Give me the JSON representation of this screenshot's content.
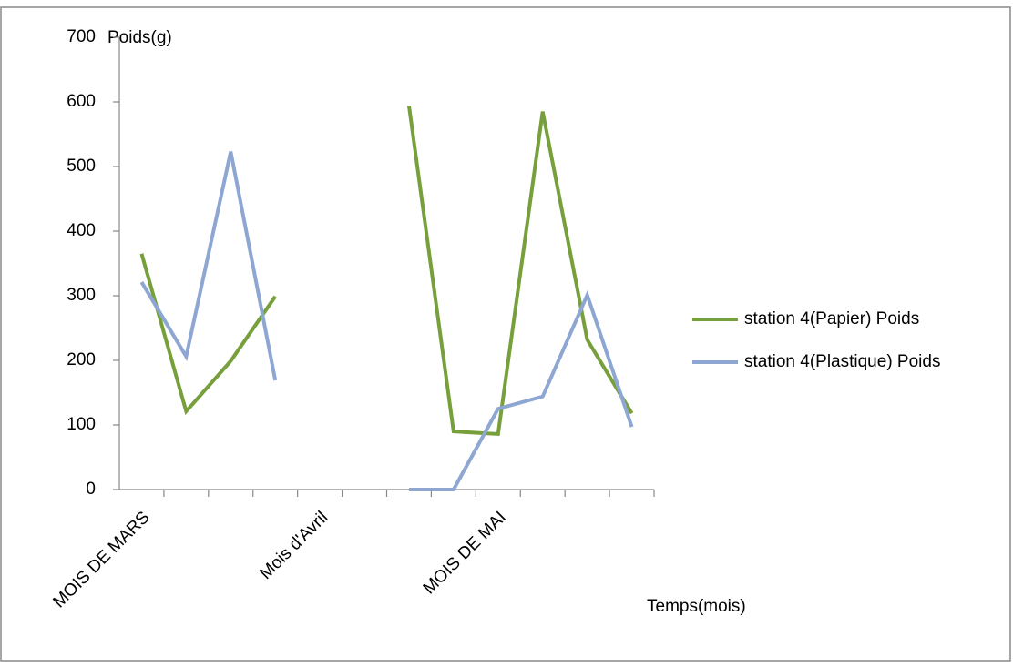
{
  "chart_data": {
    "type": "line",
    "y_label": "Poids(g)",
    "x_label": "Temps(mois)",
    "categories": [
      "MOIS DE MARS",
      null,
      null,
      null,
      "Mois d'Avril",
      null,
      null,
      null,
      "MOIS DE MAI",
      null,
      null,
      null
    ],
    "series": [
      {
        "name": "station 4(Papier) Poids",
        "color": "#77a03c",
        "values": [
          365,
          121,
          199,
          299,
          null,
          null,
          594,
          90,
          86,
          585,
          232,
          118
        ]
      },
      {
        "name": "station 4(Plastique) Poids",
        "color": "#8ea7d2",
        "values": [
          321,
          206,
          523,
          169,
          null,
          null,
          0,
          0,
          125,
          144,
          301,
          97
        ]
      }
    ],
    "ylim": [
      0,
      700
    ],
    "yticks": [
      0,
      100,
      200,
      300,
      400,
      500,
      600,
      700
    ],
    "grid": false,
    "legend": "right"
  }
}
